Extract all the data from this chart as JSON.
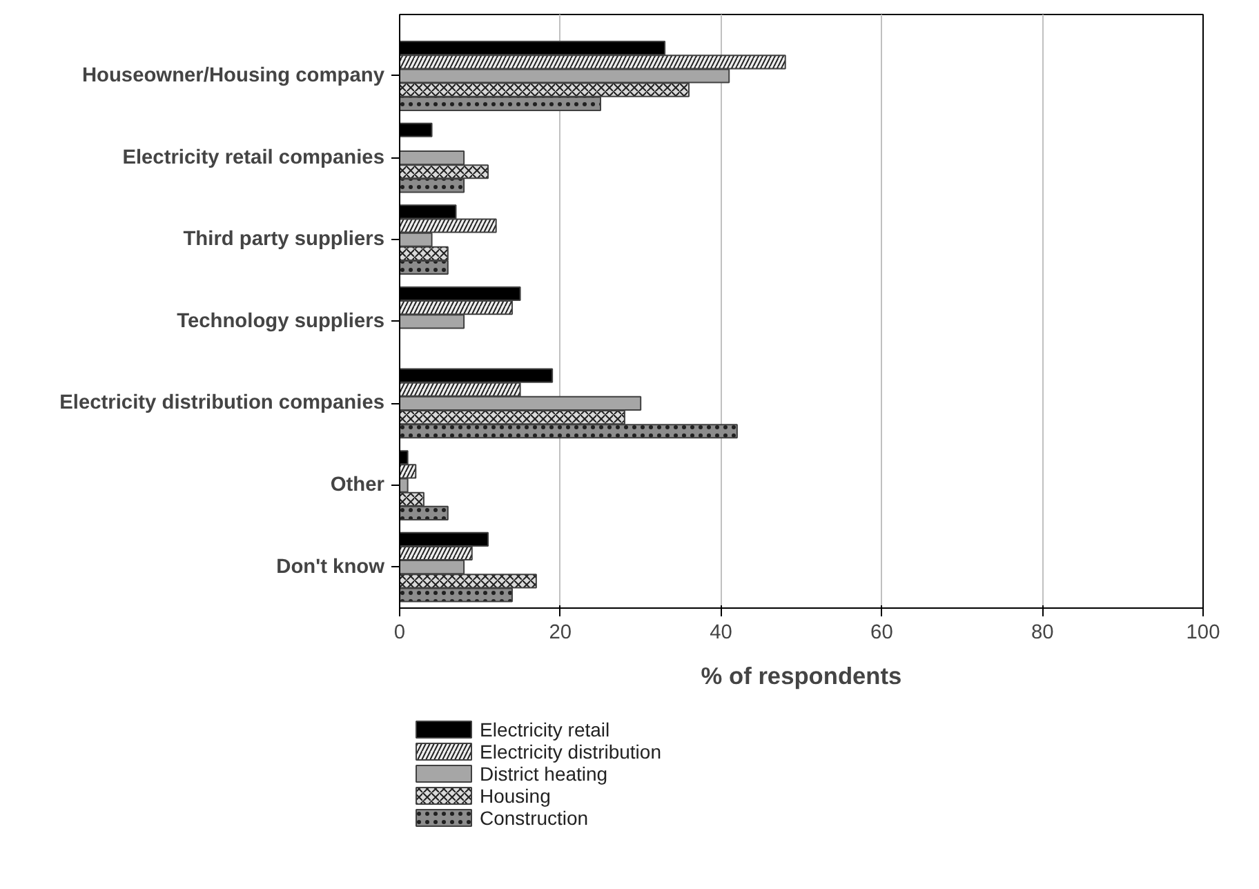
{
  "chart_data": {
    "type": "bar",
    "orientation": "horizontal",
    "xlabel": "% of respondents",
    "categories": [
      "Houseowner/Housing company",
      "Electricity retail companies",
      "Third party suppliers",
      "Technology suppliers",
      "Electricity distribution companies",
      "Other",
      "Don't know"
    ],
    "series": [
      {
        "name": "Electricity retail",
        "color": "#000000",
        "values": [
          33,
          4,
          7,
          15,
          19,
          1,
          11
        ]
      },
      {
        "name": "Electricity distribution",
        "color": "#eeeeee",
        "values": [
          48,
          null,
          12,
          14,
          15,
          2,
          9
        ]
      },
      {
        "name": "District heating",
        "color": "#a6a6a6",
        "values": [
          41,
          8,
          4,
          8,
          30,
          1,
          8
        ]
      },
      {
        "name": "Housing",
        "color": "#d9d9d9",
        "values": [
          36,
          11,
          6,
          null,
          28,
          3,
          17
        ]
      },
      {
        "name": "Construction",
        "color": "#8c8c8c",
        "values": [
          25,
          8,
          6,
          null,
          42,
          6,
          14
        ]
      }
    ],
    "xlim": [
      0,
      100
    ],
    "xticks": [
      0,
      20,
      40,
      60,
      80,
      100
    ],
    "grid": "x",
    "legend": "bottom"
  }
}
